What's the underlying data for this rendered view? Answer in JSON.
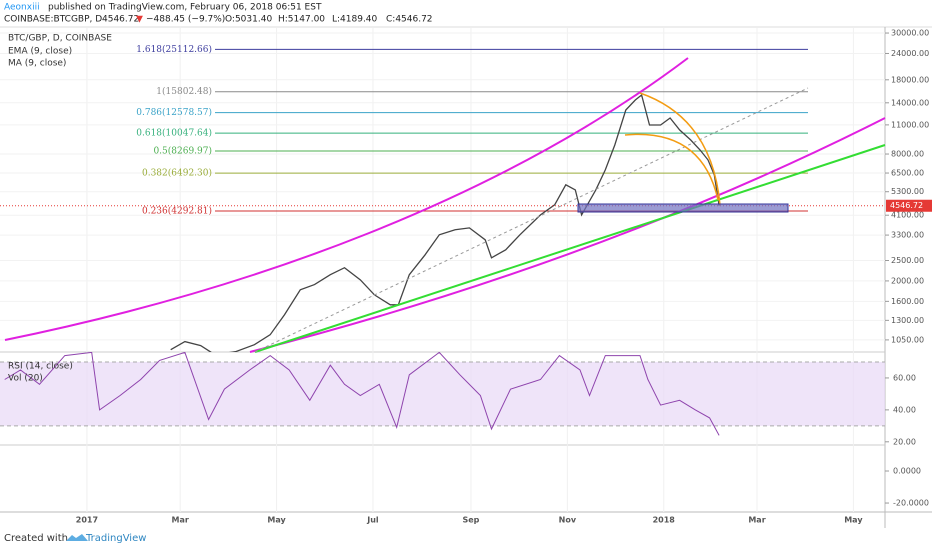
{
  "header": {
    "author": "Aeonxiii",
    "published": "published on TradingView.com, February 06, 2018 06:51 EST",
    "symbol": "COINBASE:BTCGBP, D",
    "price": "4546.72",
    "arrow": "▼",
    "change": "−488.45 (−9.7%)",
    "open": "O:5031.40",
    "high": "H:5147.00",
    "low": "L:4189.40",
    "close": "C:4546.72"
  },
  "legend": [
    "BTC/GBP, D, COINBASE",
    "EMA (9, close)",
    "MA (9, close)"
  ],
  "footer": {
    "created": "Created with",
    "brand": "TradingView"
  },
  "chart_data": {
    "type": "line",
    "log_y": true,
    "color": "#444444",
    "last_price": 4546.72,
    "last_color": "#e53935",
    "xlim": [
      -55,
      505
    ],
    "ylim": [
      920,
      31700
    ],
    "xticks": [
      {
        "value": 0,
        "label": "2017"
      },
      {
        "value": 59,
        "label": "Mar"
      },
      {
        "value": 120,
        "label": "May"
      },
      {
        "value": 181,
        "label": "Jul"
      },
      {
        "value": 243,
        "label": "Sep"
      },
      {
        "value": 304,
        "label": "Nov"
      },
      {
        "value": 365,
        "label": "2018"
      },
      {
        "value": 424,
        "label": "Mar"
      },
      {
        "value": 485,
        "label": "May"
      }
    ],
    "yticks": [
      {
        "value": 30000,
        "label": "30000.00"
      },
      {
        "value": 24000,
        "label": "24000.00"
      },
      {
        "value": 18000,
        "label": "18000.00"
      },
      {
        "value": 14000,
        "label": "14000.00"
      },
      {
        "value": 11000,
        "label": "11000.00"
      },
      {
        "value": 8000,
        "label": "8000.00"
      },
      {
        "value": 6500,
        "label": "6500.00"
      },
      {
        "value": 5300,
        "label": "5300.00"
      },
      {
        "value": 4100,
        "label": "4100.00"
      },
      {
        "value": 3300,
        "label": "3300.00"
      },
      {
        "value": 2500,
        "label": "2500.00"
      },
      {
        "value": 2000,
        "label": "2000.00"
      },
      {
        "value": 1600,
        "label": "1600.00"
      },
      {
        "value": 1300,
        "label": "1300.00"
      },
      {
        "value": 1050,
        "label": "1050.00"
      }
    ],
    "x": [
      53,
      62,
      72,
      81,
      94,
      106,
      116,
      125,
      135,
      144,
      154,
      163,
      173,
      182,
      192,
      197,
      204,
      214,
      223,
      233,
      242,
      252,
      256,
      265,
      274,
      287,
      296,
      303,
      309,
      313,
      322,
      328,
      334,
      341,
      347,
      351,
      356,
      363,
      369,
      375,
      382,
      388,
      393,
      397,
      400
    ],
    "values": [
      943,
      1031,
      987,
      893,
      923,
      996,
      1111,
      1383,
      1816,
      1921,
      2140,
      2310,
      2025,
      1717,
      1540,
      1540,
      2140,
      2660,
      3310,
      3500,
      3570,
      3135,
      2575,
      2810,
      3310,
      4115,
      4595,
      5715,
      5405,
      4115,
      5405,
      6730,
      8830,
      12940,
      14430,
      15250,
      10990,
      10990,
      11860,
      10410,
      9340,
      8360,
      7500,
      6370,
      4546.72
    ],
    "fib": [
      {
        "value": 25112.66,
        "label": "1.618(25112.66)",
        "color": "#3d3d9e"
      },
      {
        "value": 15802.48,
        "label": "1(15802.48)",
        "color": "#8a8a8a"
      },
      {
        "value": 12578.57,
        "label": "0.786(12578.57)",
        "color": "#3aa3c8"
      },
      {
        "value": 10047.64,
        "label": "0.618(10047.64)",
        "color": "#35b07c"
      },
      {
        "value": 8269.97,
        "label": "0.5(8269.97)",
        "color": "#4caf50"
      },
      {
        "value": 6492.3,
        "label": "0.382(6492.30)",
        "color": "#9aad3a"
      },
      {
        "value": 4292.81,
        "label": "0.236(4292.81)",
        "color": "#d03030"
      }
    ],
    "rsi": {
      "name": "RSI (14, close)",
      "color": "#8e44ad",
      "ylim": [
        18,
        76.25
      ],
      "band": [
        30,
        70
      ],
      "yticks": [
        {
          "value": 60,
          "label": "60.00"
        },
        {
          "value": 40,
          "label": "40.00"
        },
        {
          "value": 20,
          "label": "20.00"
        }
      ],
      "x": [
        -52,
        -42,
        -30,
        -14,
        3,
        8,
        21,
        34,
        46,
        62,
        77,
        87,
        103,
        116,
        128,
        141,
        154,
        163,
        173,
        185,
        196,
        204,
        223,
        236,
        249,
        256,
        268,
        287,
        299,
        312,
        318,
        328,
        350,
        355,
        363,
        375,
        385,
        394,
        400
      ],
      "values": [
        59,
        65,
        56,
        74,
        76,
        40,
        49,
        59,
        71,
        76,
        34,
        53,
        65,
        74,
        65,
        46,
        68,
        56,
        49,
        56,
        29,
        62,
        76,
        62,
        49,
        28,
        53,
        59,
        74,
        65,
        49,
        74,
        74,
        59,
        43,
        46,
        40,
        35,
        24
      ]
    },
    "vol": {
      "name": "Vol (20)",
      "ylim": [
        -25.6,
        16.25
      ],
      "yticks": [
        {
          "value": 0,
          "label": "0.0000"
        },
        {
          "value": -20,
          "label": "-20.0000"
        }
      ]
    }
  }
}
